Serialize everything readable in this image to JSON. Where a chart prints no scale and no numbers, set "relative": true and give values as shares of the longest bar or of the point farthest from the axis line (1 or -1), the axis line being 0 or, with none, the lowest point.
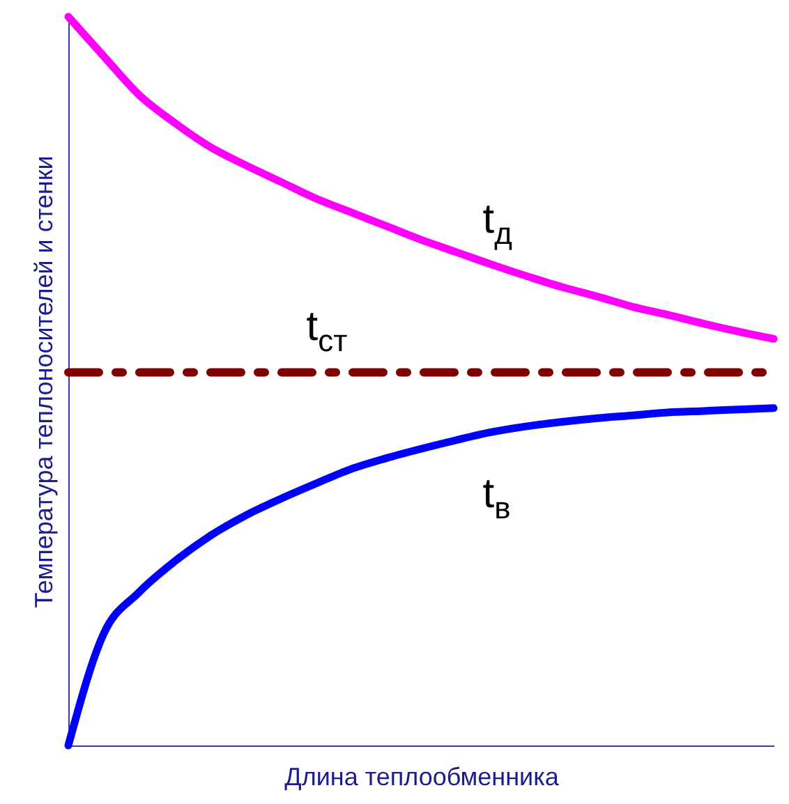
{
  "chart_data": {
    "type": "line",
    "relative": true,
    "xlabel": "Длина теплообменника",
    "ylabel": "Температура теплоносителей и стенки",
    "categories": [
      null,
      null,
      null,
      null,
      null,
      null,
      null,
      null,
      null,
      null,
      null,
      null,
      null,
      null,
      null,
      null,
      null,
      null,
      null,
      null,
      null
    ],
    "series": [
      {
        "name": "t$_{д}$",
        "color": "#ff00ff",
        "line_style": "solid",
        "values": [
          1.0,
          0.946,
          0.893,
          0.855,
          0.822,
          0.797,
          0.774,
          0.751,
          0.732,
          0.713,
          0.694,
          0.677,
          0.66,
          0.644,
          0.629,
          0.616,
          0.602,
          0.591,
          0.579,
          0.568,
          0.558
        ]
      },
      {
        "name": "t$_{ст}$",
        "color": "#800000",
        "line_style": "dashed",
        "values": [
          0.512,
          0.512,
          0.512,
          0.512,
          0.512,
          0.512,
          0.512,
          0.512,
          0.512,
          0.512,
          0.512,
          0.512,
          0.512,
          0.512,
          0.512,
          0.512,
          0.512,
          0.512,
          0.512,
          0.512,
          0.512
        ]
      },
      {
        "name": "t$_{в}$",
        "color": "#0000ff",
        "line_style": "solid",
        "values": [
          0.0,
          0.153,
          0.21,
          0.252,
          0.287,
          0.315,
          0.338,
          0.359,
          0.379,
          0.394,
          0.407,
          0.419,
          0.43,
          0.438,
          0.444,
          0.449,
          0.453,
          0.457,
          0.459,
          0.461,
          0.463
        ]
      }
    ],
    "grid": false
  }
}
